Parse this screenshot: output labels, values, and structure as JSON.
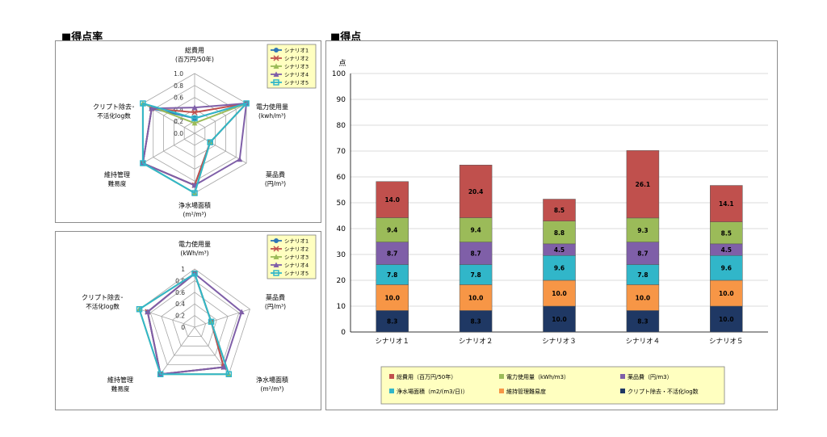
{
  "left_title": "■得点率",
  "right_title": "■得点",
  "colors": {
    "scenario1": "#2e75b6",
    "scenario2": "#c0504d",
    "scenario3": "#9bbb59",
    "scenario4": "#7f5fa8",
    "scenario5": "#31b6c9",
    "seg_total_cost": "#c0504d",
    "seg_power": "#9bbb59",
    "seg_chemical": "#7f5fa8",
    "seg_area": "#31b6c9",
    "seg_maintenance": "#f79646",
    "seg_crypto": "#1f3864",
    "legend_bg": "#ffffc0"
  },
  "chart_data": [
    {
      "type": "radar",
      "axes": [
        {
          "line1": "総費用",
          "line2": "(百万円/50年)"
        },
        {
          "line1": "電力使用量",
          "line2": "(kwh/m³)"
        },
        {
          "line1": "薬品費",
          "line2": "(円/m³)"
        },
        {
          "line1": "浄水場面積",
          "line2": "(m²/m³)"
        },
        {
          "line1": "維持管理",
          "line2": "難易度"
        },
        {
          "line1": "クリプト除去･",
          "line2": "不活化log数"
        }
      ],
      "ticks": [
        "1.0",
        "0.8",
        "0.6",
        "0.4",
        "0.2",
        "0.0"
      ],
      "range": [
        0,
        1
      ],
      "series": [
        {
          "name": "シナリオ1",
          "values": [
            0.25,
            1.0,
            0.3,
            0.87,
            1.0,
            0.83
          ]
        },
        {
          "name": "シナリオ2",
          "values": [
            0.35,
            1.0,
            0.3,
            0.87,
            1.0,
            0.83
          ]
        },
        {
          "name": "シナリオ3",
          "values": [
            0.17,
            1.0,
            0.3,
            1.0,
            1.0,
            1.0
          ]
        },
        {
          "name": "シナリオ4",
          "values": [
            0.43,
            1.0,
            0.87,
            0.87,
            1.0,
            0.83
          ]
        },
        {
          "name": "シナリオ5",
          "values": [
            0.25,
            1.0,
            0.3,
            1.0,
            1.0,
            1.0
          ]
        }
      ],
      "legend": [
        "シナリオ1",
        "シナリオ2",
        "シナリオ3",
        "シナリオ4",
        "シナリオ5"
      ]
    },
    {
      "type": "radar",
      "axes": [
        {
          "line1": "電力使用量",
          "line2": "(kWh/m³)"
        },
        {
          "line1": "薬品費",
          "line2": "(円/m³)"
        },
        {
          "line1": "浄水場面積",
          "line2": "(m²/m³)"
        },
        {
          "line1": "維持管理",
          "line2": "難易度"
        },
        {
          "line1": "クリプト除去･",
          "line2": "不活化log数"
        }
      ],
      "ticks": [
        "1",
        "0.8",
        "0.6",
        "0.4",
        "0.2",
        "0"
      ],
      "range": [
        0,
        1
      ],
      "series": [
        {
          "name": "シナリオ1",
          "values": [
            0.92,
            0.3,
            0.85,
            1.0,
            0.85
          ]
        },
        {
          "name": "シナリオ2",
          "values": [
            0.92,
            0.3,
            0.85,
            1.0,
            0.85
          ]
        },
        {
          "name": "シナリオ3",
          "values": [
            0.92,
            0.3,
            1.0,
            1.0,
            1.0
          ]
        },
        {
          "name": "シナリオ4",
          "values": [
            0.92,
            0.85,
            0.85,
            1.0,
            0.85
          ]
        },
        {
          "name": "シナリオ5",
          "values": [
            0.92,
            0.3,
            1.0,
            1.0,
            1.0
          ]
        }
      ],
      "legend": [
        "シナリオ1",
        "シナリオ2",
        "シナリオ3",
        "シナリオ4",
        "シナリオ5"
      ]
    },
    {
      "type": "bar",
      "stacked": true,
      "ylabel": "点",
      "ylim": [
        0,
        100
      ],
      "yticks": [
        "0",
        "10",
        "20",
        "30",
        "40",
        "50",
        "60",
        "70",
        "80",
        "90",
        "100"
      ],
      "categories": [
        "シナリオ１",
        "シナリオ２",
        "シナリオ３",
        "シナリオ４",
        "シナリオ５"
      ],
      "series": [
        {
          "name": "クリプト除去・不活化log数",
          "values": [
            8.3,
            8.3,
            10.0,
            8.3,
            10.0
          ],
          "labels": [
            "8.3",
            "8.3",
            "10.0",
            "8.3",
            "10.0"
          ]
        },
        {
          "name": "維持管理難易度",
          "values": [
            10.0,
            10.0,
            10.0,
            10.0,
            10.0
          ],
          "labels": [
            "10.0",
            "10.0",
            "10.0",
            "10.0",
            "10.0"
          ]
        },
        {
          "name": "浄水場面積（m2/(m3/日)）",
          "values": [
            7.8,
            7.8,
            9.6,
            7.8,
            9.6
          ],
          "labels": [
            "7.8",
            "7.8",
            "9.6",
            "7.8",
            "9.6"
          ]
        },
        {
          "name": "薬品費（円/m3）",
          "values": [
            8.7,
            8.7,
            4.5,
            8.7,
            4.5
          ],
          "labels": [
            "8.7",
            "8.7",
            "4.5",
            "8.7",
            "4.5"
          ]
        },
        {
          "name": "電力使用量（kWh/m3）",
          "values": [
            9.4,
            9.4,
            8.8,
            9.3,
            8.5
          ],
          "labels": [
            "9.4",
            "9.4",
            "8.8",
            "9.3",
            "8.5"
          ]
        },
        {
          "name": "総費用（百万円/50年）",
          "values": [
            14.0,
            20.4,
            8.5,
            26.1,
            14.1
          ],
          "labels": [
            "14.0",
            "20.4",
            "8.5",
            "26.1",
            "14.1"
          ]
        }
      ],
      "legend_order": [
        "総費用（百万円/50年）",
        "電力使用量（kWh/m3）",
        "薬品費（円/m3）",
        "浄水場面積（m2/(m3/日)）",
        "維持管理難易度",
        "クリプト除去・不活化log数"
      ]
    }
  ]
}
